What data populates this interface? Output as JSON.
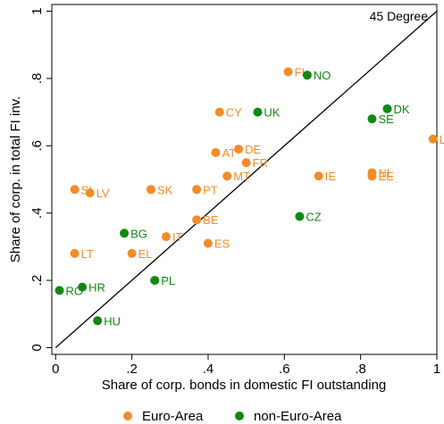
{
  "chart_data": {
    "type": "scatter",
    "xlabel": "Share of corp. bonds in domestic FI outstanding",
    "ylabel": "Share of corp. in total FI inv.",
    "xlim": [
      -0.01,
      1.0
    ],
    "ylim": [
      -0.02,
      1.02
    ],
    "x_ticks": [
      0,
      0.2,
      0.4,
      0.6,
      0.8,
      1
    ],
    "x_tick_labels": [
      "0",
      ".2",
      ".4",
      ".6",
      ".8",
      "1"
    ],
    "y_ticks": [
      0,
      0.2,
      0.4,
      0.6,
      0.8,
      1
    ],
    "y_tick_labels": [
      "0",
      ".2",
      ".4",
      ".6",
      ".8",
      "1"
    ],
    "grid": false,
    "legend_placement": "bottom",
    "reference_line": {
      "label": "45 Degree",
      "from": [
        0,
        0
      ],
      "to": [
        1,
        1
      ]
    },
    "series": [
      {
        "name": "Euro-Area",
        "color": "#f28c28",
        "points": [
          {
            "label": "FI",
            "x": 0.61,
            "y": 0.82
          },
          {
            "label": "CY",
            "x": 0.43,
            "y": 0.7
          },
          {
            "label": "AT",
            "x": 0.42,
            "y": 0.58
          },
          {
            "label": "DE",
            "x": 0.48,
            "y": 0.59
          },
          {
            "label": "FR",
            "x": 0.5,
            "y": 0.55
          },
          {
            "label": "MT",
            "x": 0.45,
            "y": 0.51
          },
          {
            "label": "SI",
            "x": 0.05,
            "y": 0.47
          },
          {
            "label": "LV",
            "x": 0.09,
            "y": 0.46
          },
          {
            "label": "SK",
            "x": 0.25,
            "y": 0.47
          },
          {
            "label": "PT",
            "x": 0.37,
            "y": 0.47
          },
          {
            "label": "BE",
            "x": 0.37,
            "y": 0.38
          },
          {
            "label": "IT",
            "x": 0.29,
            "y": 0.33
          },
          {
            "label": "ES",
            "x": 0.4,
            "y": 0.31
          },
          {
            "label": "LT",
            "x": 0.05,
            "y": 0.28
          },
          {
            "label": "EL",
            "x": 0.2,
            "y": 0.28
          },
          {
            "label": "IE",
            "x": 0.69,
            "y": 0.51
          },
          {
            "label": "NL",
            "x": 0.83,
            "y": 0.52
          },
          {
            "label": "EE",
            "x": 0.83,
            "y": 0.51
          },
          {
            "label": "LU",
            "x": 0.99,
            "y": 0.62
          }
        ]
      },
      {
        "name": "non-Euro-Area",
        "color": "#118811",
        "points": [
          {
            "label": "NO",
            "x": 0.66,
            "y": 0.81
          },
          {
            "label": "UK",
            "x": 0.53,
            "y": 0.7
          },
          {
            "label": "DK",
            "x": 0.87,
            "y": 0.71
          },
          {
            "label": "SE",
            "x": 0.83,
            "y": 0.68
          },
          {
            "label": "CZ",
            "x": 0.64,
            "y": 0.39
          },
          {
            "label": "BG",
            "x": 0.18,
            "y": 0.34
          },
          {
            "label": "PL",
            "x": 0.26,
            "y": 0.2
          },
          {
            "label": "HR",
            "x": 0.07,
            "y": 0.18
          },
          {
            "label": "RO",
            "x": 0.01,
            "y": 0.17
          },
          {
            "label": "HU",
            "x": 0.11,
            "y": 0.08
          }
        ]
      }
    ]
  }
}
